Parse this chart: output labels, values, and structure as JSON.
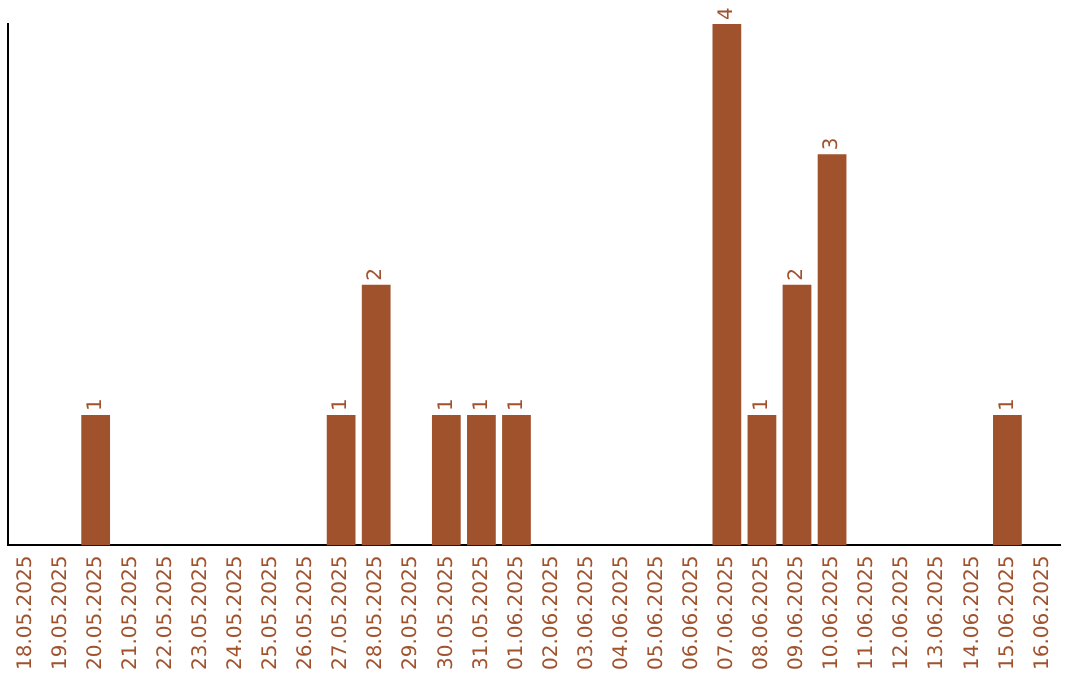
{
  "chart_data": {
    "type": "bar",
    "categories": [
      "18.05.2025",
      "19.05.2025",
      "20.05.2025",
      "21.05.2025",
      "22.05.2025",
      "23.05.2025",
      "24.05.2025",
      "25.05.2025",
      "26.05.2025",
      "27.05.2025",
      "28.05.2025",
      "29.05.2025",
      "30.05.2025",
      "31.05.2025",
      "01.06.2025",
      "02.06.2025",
      "03.06.2025",
      "04.06.2025",
      "05.06.2025",
      "06.06.2025",
      "07.06.2025",
      "08.06.2025",
      "09.06.2025",
      "10.06.2025",
      "11.06.2025",
      "12.06.2025",
      "13.06.2025",
      "14.06.2025",
      "15.06.2025",
      "16.06.2025"
    ],
    "series": [
      {
        "color": "#a0522d",
        "values": [
          0,
          0,
          1,
          0,
          0,
          0,
          0,
          0,
          0,
          1,
          2,
          0,
          1,
          1,
          1,
          0,
          0,
          0,
          0,
          0,
          4,
          1,
          2,
          3,
          0,
          0,
          0,
          0,
          1,
          0
        ],
        "value_labels": [
          null,
          null,
          "1",
          null,
          null,
          null,
          null,
          null,
          null,
          "1",
          "2",
          null,
          "1",
          "1",
          "1",
          null,
          null,
          null,
          null,
          null,
          "4",
          "1",
          "2",
          "3",
          null,
          null,
          null,
          null,
          "1",
          null
        ]
      }
    ],
    "tick_labels": "x",
    "grid": false,
    "legend": false
  }
}
